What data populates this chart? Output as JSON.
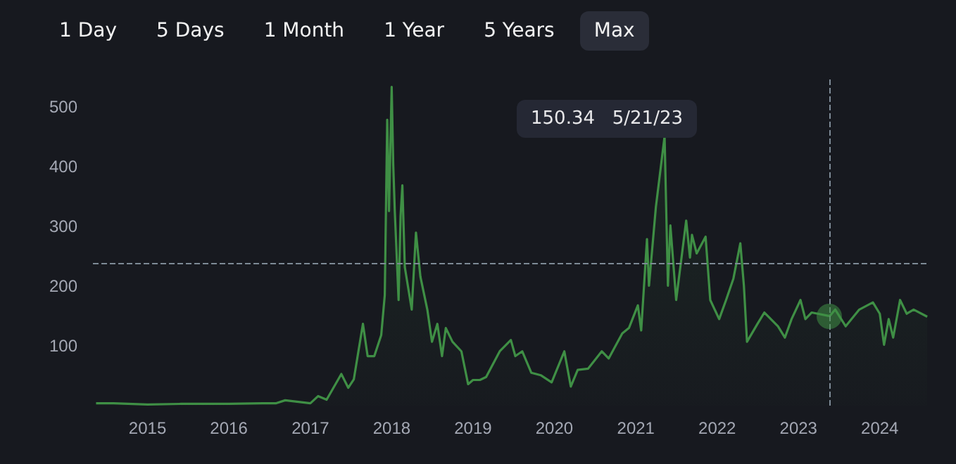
{
  "chart_data": {
    "type": "area",
    "annotations": [
      "1 Day",
      "5 Days",
      "1 Month",
      "1 Year",
      "5 Years",
      "Max",
      "150.34   5/21/23"
    ],
    "x": [
      "2014-05-15",
      "2014-08-01",
      "2015-01-01",
      "2015-06-01",
      "2016-01-01",
      "2016-06-01",
      "2016-08-01",
      "2016-09-10",
      "2017-01-01",
      "2017-02-05",
      "2017-03-15",
      "2017-05-20",
      "2017-06-20",
      "2017-07-15",
      "2017-08-25",
      "2017-09-15",
      "2017-10-15",
      "2017-11-15",
      "2017-12-01",
      "2017-12-12",
      "2017-12-20",
      "2018-01-01",
      "2018-01-08",
      "2018-01-15",
      "2018-02-01",
      "2018-02-10",
      "2018-02-18",
      "2018-03-01",
      "2018-04-01",
      "2018-04-20",
      "2018-05-10",
      "2018-06-10",
      "2018-07-01",
      "2018-07-25",
      "2018-08-15",
      "2018-09-01",
      "2018-10-01",
      "2018-11-10",
      "2018-12-10",
      "2019-01-01",
      "2019-02-01",
      "2019-03-01",
      "2019-05-01",
      "2019-06-20",
      "2019-07-10",
      "2019-08-10",
      "2019-09-20",
      "2019-11-01",
      "2019-12-20",
      "2020-02-15",
      "2020-03-15",
      "2020-04-15",
      "2020-06-01",
      "2020-08-01",
      "2020-09-01",
      "2020-11-01",
      "2020-12-01",
      "2021-01-10",
      "2021-01-25",
      "2021-02-20",
      "2021-03-01",
      "2021-04-01",
      "2021-05-10",
      "2021-05-25",
      "2021-06-05",
      "2021-07-01",
      "2021-08-15",
      "2021-09-01",
      "2021-09-10",
      "2021-10-01",
      "2021-11-10",
      "2021-12-01",
      "2022-01-10",
      "2022-02-10",
      "2022-03-15",
      "2022-04-15",
      "2022-05-01",
      "2022-05-15",
      "2022-07-01",
      "2022-08-01",
      "2022-10-01",
      "2022-11-01",
      "2022-12-01",
      "2023-01-10",
      "2023-02-01",
      "2023-03-01",
      "2023-05-21",
      "2023-06-15",
      "2023-08-01",
      "2023-10-01",
      "2023-12-01",
      "2024-01-01",
      "2024-01-20",
      "2024-02-10",
      "2024-03-01",
      "2024-04-01",
      "2024-05-01",
      "2024-06-01",
      "2024-08-01"
    ],
    "series": [
      {
        "color": "#3f8f45",
        "values": [
          4,
          4,
          2,
          3,
          3,
          4,
          4,
          9,
          4,
          16,
          10,
          53,
          30,
          44,
          137,
          83,
          83,
          118,
          185,
          479,
          326,
          534,
          404,
          326,
          177,
          318,
          369,
          232,
          161,
          290,
          216,
          161,
          107,
          137,
          83,
          130,
          107,
          91,
          36,
          43,
          43,
          48,
          91,
          110,
          83,
          91,
          55,
          51,
          39,
          91,
          32,
          60,
          62,
          91,
          79,
          121,
          130,
          168,
          126,
          279,
          201,
          333,
          451,
          201,
          302,
          177,
          310,
          248,
          286,
          255,
          283,
          177,
          145,
          177,
          213,
          272,
          201,
          107,
          137,
          156,
          133,
          114,
          145,
          177,
          145,
          156,
          150,
          161,
          133,
          161,
          173,
          154,
          102,
          145,
          114,
          177,
          154,
          161,
          149
        ]
      }
    ],
    "xlim": [
      "2014-05-01",
      "2024-08-10"
    ],
    "xticks": [
      "2015",
      "2016",
      "2017",
      "2018",
      "2019",
      "2020",
      "2021",
      "2022",
      "2023",
      "2024"
    ],
    "ylim": [
      0,
      550
    ],
    "yticks": [
      100,
      200,
      300,
      400,
      500
    ],
    "grid": false,
    "ref_lines": [
      {
        "axis": "x",
        "value": "2023-05-21",
        "color": "#7d8a96",
        "line_style": "dashed"
      },
      {
        "axis": "y",
        "value": 239,
        "color": "#7d8a96",
        "line_style": "dashed"
      }
    ]
  }
}
